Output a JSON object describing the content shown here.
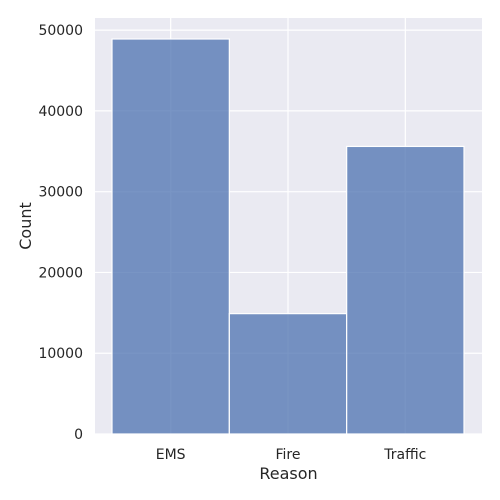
{
  "chart_data": {
    "type": "bar",
    "categories": [
      "EMS",
      "Fire",
      "Traffic"
    ],
    "values": [
      48900,
      14900,
      35600
    ],
    "xlabel": "Reason",
    "ylabel": "Count",
    "ylim": [
      0,
      51500
    ],
    "yticks": [
      0,
      10000,
      20000,
      30000,
      40000,
      50000
    ],
    "ytick_labels": [
      "0",
      "10000",
      "20000",
      "30000",
      "40000",
      "50000"
    ],
    "grid": true,
    "colors": {
      "bar": "#4c72b0",
      "plot_background": "#eaeaf2",
      "grid": "#ffffff",
      "text": "#262626"
    }
  }
}
